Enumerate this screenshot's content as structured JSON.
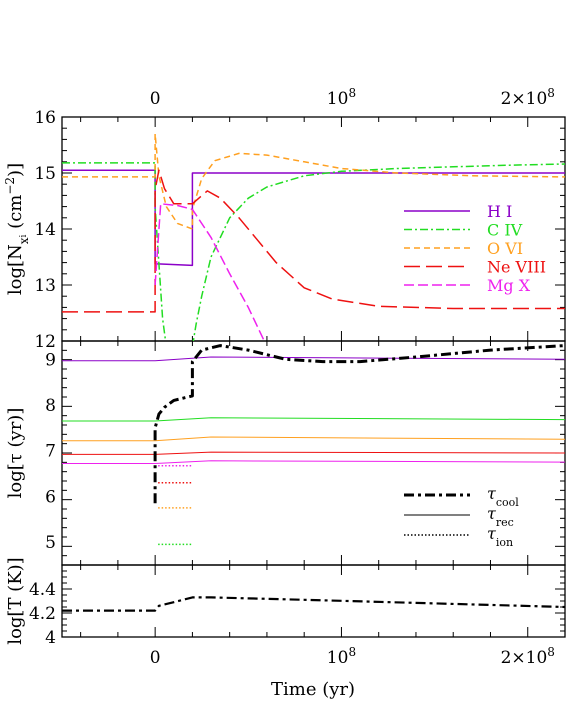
{
  "chart_data": [
    {
      "type": "line",
      "panel": "column-density",
      "ylabel": "log[N",
      "ylabel_sub": "x",
      "ylabel_subsub": "i",
      "ylabel_tail": " (cm",
      "ylabel_sup": "−2",
      "ylabel_end": ")]",
      "ylim": [
        12,
        16
      ],
      "xlim": [
        -50000000,
        220000000
      ],
      "yticks": [
        "12",
        "13",
        "14",
        "15",
        "16"
      ],
      "top_xticks": [
        "0",
        "10",
        "2×10"
      ],
      "top_xtick_exp": "8",
      "series": [
        {
          "name": "H  I",
          "color": "#8b00c8",
          "dash": "",
          "points": [
            [
              -50000000,
              15.05
            ],
            [
              0,
              15.05
            ],
            [
              0,
              13.38
            ],
            [
              20000000,
              13.35
            ],
            [
              20000000,
              15.0
            ],
            [
              220000000,
              15.0
            ]
          ]
        },
        {
          "name": "C  IV",
          "color": "#22dd22",
          "dash": "8,3,2,3",
          "points": [
            [
              -50000000,
              15.18
            ],
            [
              0,
              15.18
            ],
            [
              0,
              14.4
            ],
            [
              4000000,
              12.4
            ],
            [
              6000000,
              11.9
            ],
            [
              20000000,
              11.9
            ],
            [
              22000000,
              12.3
            ],
            [
              25000000,
              12.8
            ],
            [
              30000000,
              13.5
            ],
            [
              40000000,
              14.2
            ],
            [
              50000000,
              14.55
            ],
            [
              60000000,
              14.75
            ],
            [
              80000000,
              14.95
            ],
            [
              100000000,
              15.03
            ],
            [
              130000000,
              15.08
            ],
            [
              160000000,
              15.11
            ],
            [
              190000000,
              15.14
            ],
            [
              220000000,
              15.16
            ]
          ]
        },
        {
          "name": "O  VI",
          "color": "#ffa020",
          "dash": "6,4",
          "points": [
            [
              -50000000,
              14.93
            ],
            [
              0,
              14.93
            ],
            [
              0,
              15.7
            ],
            [
              2000000,
              14.95
            ],
            [
              6000000,
              14.4
            ],
            [
              12000000,
              14.1
            ],
            [
              20000000,
              14.0
            ],
            [
              20000000,
              14.35
            ],
            [
              25000000,
              14.9
            ],
            [
              32000000,
              15.22
            ],
            [
              45000000,
              15.35
            ],
            [
              60000000,
              15.32
            ],
            [
              80000000,
              15.2
            ],
            [
              100000000,
              15.08
            ],
            [
              130000000,
              15.0
            ],
            [
              170000000,
              14.95
            ],
            [
              220000000,
              14.93
            ]
          ]
        },
        {
          "name": "Ne VIII",
          "color": "#ee1111",
          "dash": "16,6",
          "points": [
            [
              -50000000,
              12.52
            ],
            [
              0,
              12.52
            ],
            [
              0,
              14.7
            ],
            [
              2000000,
              15.05
            ],
            [
              5000000,
              14.72
            ],
            [
              10000000,
              14.45
            ],
            [
              20000000,
              14.45
            ],
            [
              28000000,
              14.68
            ],
            [
              35000000,
              14.55
            ],
            [
              45000000,
              14.2
            ],
            [
              55000000,
              13.8
            ],
            [
              65000000,
              13.4
            ],
            [
              80000000,
              12.95
            ],
            [
              95000000,
              12.75
            ],
            [
              120000000,
              12.62
            ],
            [
              160000000,
              12.58
            ],
            [
              220000000,
              12.58
            ]
          ]
        },
        {
          "name": "Mg X",
          "color": "#ee22ee",
          "dash": "10,4",
          "points": [
            [
              0,
              13.0
            ],
            [
              3000000,
              14.45
            ],
            [
              12000000,
              14.42
            ],
            [
              20000000,
              14.35
            ],
            [
              30000000,
              13.85
            ],
            [
              40000000,
              13.2
            ],
            [
              50000000,
              12.6
            ],
            [
              60000000,
              11.9
            ]
          ]
        }
      ]
    },
    {
      "type": "line",
      "panel": "timescales",
      "ylabel": "log[",
      "ylabel_sym": "τ",
      "ylabel_tail": " (yr)]",
      "ylim": [
        4.5,
        9.4
      ],
      "yticks": [
        "5",
        "6",
        "7",
        "8",
        "9"
      ],
      "legend": [
        {
          "sym": "τ",
          "sub": "cool",
          "style": "dashdot-thick"
        },
        {
          "sym": "τ",
          "sub": "rec",
          "style": "solid-thin"
        },
        {
          "sym": "τ",
          "sub": "ion",
          "style": "dotted"
        }
      ],
      "cool": {
        "color": "#000000",
        "points": [
          [
            0,
            5.85
          ],
          [
            0,
            7.5
          ],
          [
            2000000,
            7.8
          ],
          [
            5000000,
            7.95
          ],
          [
            10000000,
            8.1
          ],
          [
            20000000,
            8.2
          ],
          [
            20000000,
            8.95
          ],
          [
            25000000,
            9.2
          ],
          [
            35000000,
            9.3
          ],
          [
            50000000,
            9.2
          ],
          [
            70000000,
            9.0
          ],
          [
            90000000,
            8.95
          ],
          [
            110000000,
            8.95
          ],
          [
            140000000,
            9.05
          ],
          [
            180000000,
            9.2
          ],
          [
            220000000,
            9.3
          ]
        ]
      },
      "rec": [
        {
          "color": "#8b00c8",
          "points": [
            [
              -50000000,
              8.97
            ],
            [
              0,
              8.97
            ],
            [
              30000000,
              9.05
            ],
            [
              220000000,
              9.0
            ]
          ]
        },
        {
          "color": "#22dd22",
          "points": [
            [
              -50000000,
              7.65
            ],
            [
              0,
              7.65
            ],
            [
              30000000,
              7.72
            ],
            [
              220000000,
              7.68
            ]
          ]
        },
        {
          "color": "#ffa020",
          "points": [
            [
              -50000000,
              7.22
            ],
            [
              0,
              7.22
            ],
            [
              30000000,
              7.3
            ],
            [
              220000000,
              7.25
            ]
          ]
        },
        {
          "color": "#ee1111",
          "points": [
            [
              -50000000,
              6.92
            ],
            [
              0,
              6.92
            ],
            [
              30000000,
              6.97
            ],
            [
              220000000,
              6.95
            ]
          ]
        },
        {
          "color": "#ee22ee",
          "points": [
            [
              -50000000,
              6.72
            ],
            [
              0,
              6.72
            ],
            [
              30000000,
              6.78
            ],
            [
              220000000,
              6.75
            ]
          ]
        }
      ],
      "ion": [
        {
          "color": "#ee22ee",
          "y": 6.67
        },
        {
          "color": "#ee1111",
          "y": 6.3
        },
        {
          "color": "#ffa020",
          "y": 5.75
        },
        {
          "color": "#22dd22",
          "y": 4.95
        }
      ]
    },
    {
      "type": "line",
      "panel": "temperature",
      "ylabel": "log[T (K)]",
      "ylim": [
        4.0,
        4.6
      ],
      "yticks": [
        "4",
        "4.2",
        "4.4"
      ],
      "xlabel": "Time (yr)",
      "xticks": [
        "0",
        "10",
        "2×10"
      ],
      "xtick_exp": "8",
      "color": "#000000",
      "points": [
        [
          -50000000,
          4.22
        ],
        [
          0,
          4.22
        ],
        [
          2000000,
          4.26
        ],
        [
          10000000,
          4.29
        ],
        [
          20000000,
          4.33
        ],
        [
          30000000,
          4.33
        ],
        [
          80000000,
          4.31
        ],
        [
          150000000,
          4.28
        ],
        [
          220000000,
          4.25
        ]
      ]
    }
  ]
}
